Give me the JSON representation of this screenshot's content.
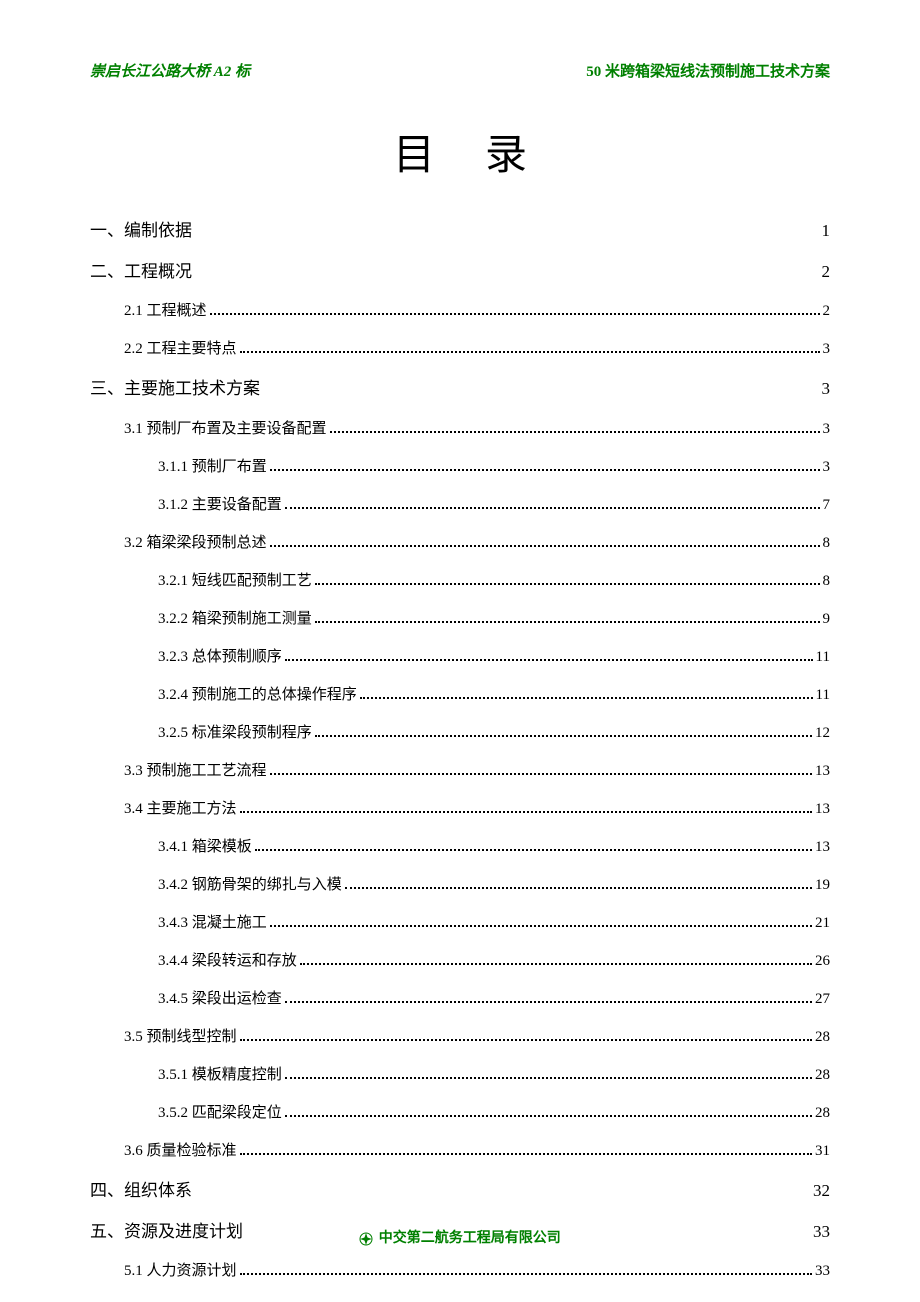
{
  "header": {
    "left": "崇启长江公路大桥 A2 标",
    "right": "50 米跨箱梁短线法预制施工技术方案"
  },
  "title": "目录",
  "colors": {
    "header_color": "#008000",
    "footer_color": "#008000",
    "text_color": "#000000",
    "background": "#ffffff"
  },
  "typography": {
    "title_fontsize": 42,
    "section_fontsize": 17,
    "item_fontsize": 15,
    "header_fontsize": 15,
    "footer_fontsize": 14
  },
  "toc": [
    {
      "type": "section",
      "label": "一、编制依据",
      "page": "1"
    },
    {
      "type": "section",
      "label": "二、工程概况",
      "page": "2"
    },
    {
      "type": "item",
      "level": 1,
      "label": "2.1 工程概述",
      "page": "2"
    },
    {
      "type": "item",
      "level": 1,
      "label": "2.2 工程主要特点",
      "page": "3"
    },
    {
      "type": "section",
      "label": "三、主要施工技术方案",
      "page": "3"
    },
    {
      "type": "item",
      "level": 1,
      "label": "3.1 预制厂布置及主要设备配置",
      "page": "3"
    },
    {
      "type": "item",
      "level": 2,
      "label": "3.1.1 预制厂布置",
      "page": "3"
    },
    {
      "type": "item",
      "level": 2,
      "label": "3.1.2 主要设备配置",
      "page": "7"
    },
    {
      "type": "item",
      "level": 1,
      "label": "3.2 箱梁梁段预制总述",
      "page": "8"
    },
    {
      "type": "item",
      "level": 2,
      "label": "3.2.1 短线匹配预制工艺",
      "page": "8"
    },
    {
      "type": "item",
      "level": 2,
      "label": "3.2.2 箱梁预制施工测量",
      "page": "9"
    },
    {
      "type": "item",
      "level": 2,
      "label": "3.2.3 总体预制顺序",
      "page": "11"
    },
    {
      "type": "item",
      "level": 2,
      "label": "3.2.4 预制施工的总体操作程序",
      "page": "11"
    },
    {
      "type": "item",
      "level": 2,
      "label": "3.2.5 标准梁段预制程序",
      "page": "12"
    },
    {
      "type": "item",
      "level": 1,
      "label": "3.3 预制施工工艺流程",
      "page": "13"
    },
    {
      "type": "item",
      "level": 1,
      "label": "3.4 主要施工方法",
      "page": "13"
    },
    {
      "type": "item",
      "level": 2,
      "label": "3.4.1 箱梁模板",
      "page": "13"
    },
    {
      "type": "item",
      "level": 2,
      "label": "3.4.2 钢筋骨架的绑扎与入模",
      "page": "19"
    },
    {
      "type": "item",
      "level": 2,
      "label": "3.4.3 混凝土施工",
      "page": "21"
    },
    {
      "type": "item",
      "level": 2,
      "label": "3.4.4 梁段转运和存放",
      "page": "26"
    },
    {
      "type": "item",
      "level": 2,
      "label": "3.4.5 梁段出运检查",
      "page": "27"
    },
    {
      "type": "item",
      "level": 1,
      "label": "3.5 预制线型控制",
      "page": "28"
    },
    {
      "type": "item",
      "level": 2,
      "label": "3.5.1 模板精度控制",
      "page": "28"
    },
    {
      "type": "item",
      "level": 2,
      "label": "3.5.2 匹配梁段定位",
      "page": "28"
    },
    {
      "type": "item",
      "level": 1,
      "label": "3.6 质量检验标准",
      "page": "31"
    },
    {
      "type": "section",
      "label": "四、组织体系",
      "page": "32"
    },
    {
      "type": "section",
      "label": "五、资源及进度计划",
      "page": "33"
    },
    {
      "type": "item",
      "level": 1,
      "label": "5.1 人力资源计划",
      "page": "33"
    }
  ],
  "footer": {
    "text": "中交第二航务工程局有限公司"
  }
}
